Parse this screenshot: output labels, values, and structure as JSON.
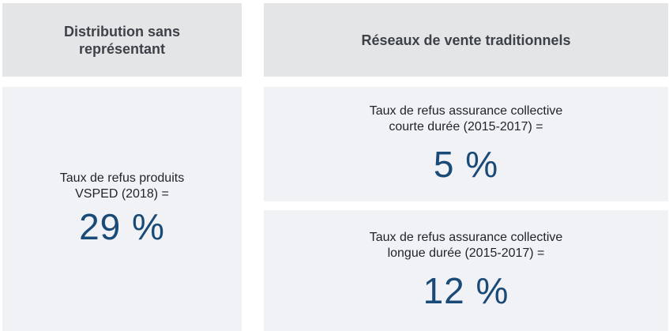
{
  "left_header": {
    "line1": "Distribution sans",
    "line2": "représentant"
  },
  "right_header": {
    "title": "Réseaux de vente traditionnels"
  },
  "left_panel": {
    "caption_line1": "Taux de refus produits",
    "caption_line2": "VSPED (2018) =",
    "value": "29 %"
  },
  "right_top_panel": {
    "caption_line1": "Taux de refus assurance collective",
    "caption_line2": "courte durée (2015-2017) =",
    "value": "5 %"
  },
  "right_bottom_panel": {
    "caption_line1": "Taux de refus assurance collective",
    "caption_line2": "longue durée (2015-2017) =",
    "value": "12 %"
  },
  "colors": {
    "header_bg": "#e4e5e7",
    "panel_bg": "#f1f2f6",
    "value_text": "#1a4a78",
    "header_text": "#3d4248"
  }
}
